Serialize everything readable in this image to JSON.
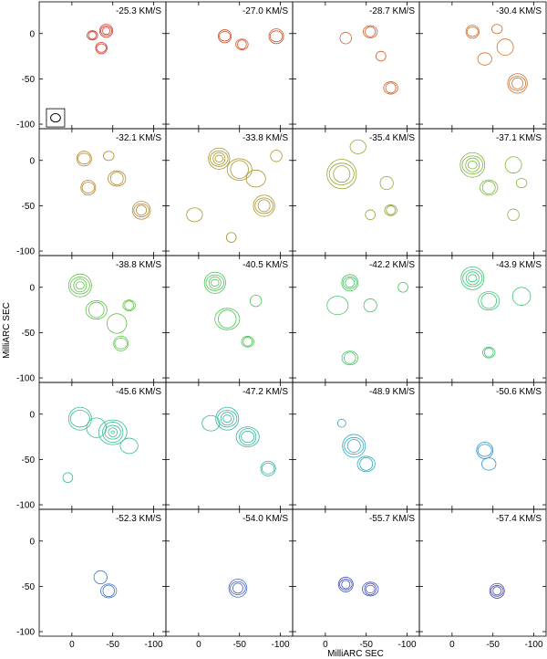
{
  "chart_data": {
    "type": "contour",
    "title": "",
    "xlabel": "MilliARC SEC",
    "ylabel": "MilliARC SEC",
    "xlim": [
      40,
      -115
    ],
    "ylim": [
      -105,
      35
    ],
    "xticks": [
      0,
      -50,
      -100
    ],
    "yticks": [
      0,
      -50,
      -100
    ],
    "velocity_unit": "KM/S",
    "beam": {
      "x": 20,
      "y": -93,
      "radius": 6
    },
    "panels": [
      {
        "velocity": "-25.3",
        "color": "#d23c2c",
        "components": [
          {
            "x": -42,
            "y": 3,
            "r": 8,
            "levels": 3
          },
          {
            "x": -25,
            "y": -2,
            "r": 6,
            "levels": 2
          },
          {
            "x": -36,
            "y": -16,
            "r": 7,
            "levels": 2
          }
        ]
      },
      {
        "velocity": "-27.0",
        "color": "#d4502c",
        "components": [
          {
            "x": -32,
            "y": -3,
            "r": 8,
            "levels": 2
          },
          {
            "x": -53,
            "y": -12,
            "r": 7,
            "levels": 2
          },
          {
            "x": -95,
            "y": -3,
            "r": 9,
            "levels": 2
          }
        ]
      },
      {
        "velocity": "-28.7",
        "color": "#d6602c",
        "components": [
          {
            "x": -25,
            "y": -5,
            "r": 7,
            "levels": 1
          },
          {
            "x": -55,
            "y": 2,
            "r": 8,
            "levels": 2
          },
          {
            "x": -68,
            "y": -25,
            "r": 6,
            "levels": 1
          },
          {
            "x": -80,
            "y": -60,
            "r": 8,
            "levels": 2
          }
        ]
      },
      {
        "velocity": "-30.4",
        "color": "#d27028",
        "components": [
          {
            "x": -25,
            "y": 2,
            "r": 8,
            "levels": 2
          },
          {
            "x": -55,
            "y": 5,
            "r": 6,
            "levels": 1
          },
          {
            "x": -65,
            "y": -15,
            "r": 10,
            "levels": 1
          },
          {
            "x": -40,
            "y": -28,
            "r": 8,
            "levels": 1
          },
          {
            "x": -80,
            "y": -55,
            "r": 12,
            "levels": 3
          }
        ]
      },
      {
        "velocity": "-32.1",
        "color": "#b8882c",
        "components": [
          {
            "x": -15,
            "y": 2,
            "r": 9,
            "levels": 2
          },
          {
            "x": -45,
            "y": 5,
            "r": 6,
            "levels": 1
          },
          {
            "x": -20,
            "y": -30,
            "r": 9,
            "levels": 2
          },
          {
            "x": -55,
            "y": -20,
            "r": 10,
            "levels": 2
          },
          {
            "x": -85,
            "y": -55,
            "r": 11,
            "levels": 3
          }
        ]
      },
      {
        "velocity": "-33.8",
        "color": "#a89428",
        "components": [
          {
            "x": -25,
            "y": 2,
            "r": 13,
            "levels": 4
          },
          {
            "x": -50,
            "y": -10,
            "r": 14,
            "levels": 2
          },
          {
            "x": -80,
            "y": -50,
            "r": 13,
            "levels": 3
          },
          {
            "x": -70,
            "y": -20,
            "r": 11,
            "levels": 1
          },
          {
            "x": -95,
            "y": 5,
            "r": 7,
            "levels": 1
          },
          {
            "x": 5,
            "y": -60,
            "r": 9,
            "levels": 1
          },
          {
            "x": -40,
            "y": -85,
            "r": 6,
            "levels": 1
          }
        ]
      },
      {
        "velocity": "-35.4",
        "color": "#8ea830",
        "components": [
          {
            "x": -20,
            "y": -15,
            "r": 18,
            "levels": 3
          },
          {
            "x": -40,
            "y": 15,
            "r": 9,
            "levels": 1
          },
          {
            "x": -75,
            "y": -25,
            "r": 8,
            "levels": 1
          },
          {
            "x": -80,
            "y": -55,
            "r": 7,
            "levels": 2
          },
          {
            "x": -55,
            "y": -60,
            "r": 6,
            "levels": 1
          }
        ]
      },
      {
        "velocity": "-37.1",
        "color": "#7ab838",
        "components": [
          {
            "x": -25,
            "y": -5,
            "r": 15,
            "levels": 4
          },
          {
            "x": -45,
            "y": -30,
            "r": 10,
            "levels": 2
          },
          {
            "x": -75,
            "y": -5,
            "r": 10,
            "levels": 1
          },
          {
            "x": -85,
            "y": -25,
            "r": 6,
            "levels": 1
          },
          {
            "x": -75,
            "y": -60,
            "r": 7,
            "levels": 1
          }
        ]
      },
      {
        "velocity": "-38.8",
        "color": "#5cc444",
        "components": [
          {
            "x": -10,
            "y": 2,
            "r": 14,
            "levels": 4
          },
          {
            "x": -30,
            "y": -25,
            "r": 12,
            "levels": 2
          },
          {
            "x": -55,
            "y": -40,
            "r": 12,
            "levels": 1
          },
          {
            "x": -70,
            "y": -20,
            "r": 7,
            "levels": 2
          },
          {
            "x": -60,
            "y": -62,
            "r": 9,
            "levels": 2
          }
        ]
      },
      {
        "velocity": "-40.5",
        "color": "#4ec454",
        "components": [
          {
            "x": -20,
            "y": 5,
            "r": 13,
            "levels": 4
          },
          {
            "x": -35,
            "y": -35,
            "r": 14,
            "levels": 2
          },
          {
            "x": -70,
            "y": -15,
            "r": 7,
            "levels": 1
          },
          {
            "x": -60,
            "y": -60,
            "r": 7,
            "levels": 2
          }
        ]
      },
      {
        "velocity": "-42.2",
        "color": "#48c464",
        "components": [
          {
            "x": -30,
            "y": 5,
            "r": 10,
            "levels": 3
          },
          {
            "x": -15,
            "y": -20,
            "r": 12,
            "levels": 1
          },
          {
            "x": -55,
            "y": -20,
            "r": 8,
            "levels": 1
          },
          {
            "x": -30,
            "y": -78,
            "r": 9,
            "levels": 2
          },
          {
            "x": -95,
            "y": 0,
            "r": 6,
            "levels": 1
          }
        ]
      },
      {
        "velocity": "-43.9",
        "color": "#3cc474",
        "components": [
          {
            "x": -25,
            "y": 10,
            "r": 14,
            "levels": 4
          },
          {
            "x": -45,
            "y": -15,
            "r": 12,
            "levels": 2
          },
          {
            "x": -85,
            "y": -10,
            "r": 11,
            "levels": 1
          },
          {
            "x": -45,
            "y": -72,
            "r": 7,
            "levels": 2
          }
        ]
      },
      {
        "velocity": "-45.6",
        "color": "#38bc8c",
        "components": [
          {
            "x": -10,
            "y": -5,
            "r": 14,
            "levels": 2
          },
          {
            "x": -50,
            "y": -20,
            "r": 16,
            "levels": 5
          },
          {
            "x": -30,
            "y": -15,
            "r": 12,
            "levels": 1
          },
          {
            "x": -70,
            "y": -35,
            "r": 10,
            "levels": 1
          },
          {
            "x": 5,
            "y": -70,
            "r": 6,
            "levels": 1
          }
        ]
      },
      {
        "velocity": "-47.2",
        "color": "#34b4a0",
        "components": [
          {
            "x": -35,
            "y": -5,
            "r": 14,
            "levels": 4
          },
          {
            "x": -60,
            "y": -25,
            "r": 13,
            "levels": 3
          },
          {
            "x": -85,
            "y": -60,
            "r": 9,
            "levels": 2
          },
          {
            "x": -15,
            "y": -10,
            "r": 10,
            "levels": 1
          }
        ]
      },
      {
        "velocity": "-48.9",
        "color": "#30a8bc",
        "components": [
          {
            "x": -35,
            "y": -35,
            "r": 14,
            "levels": 3
          },
          {
            "x": -50,
            "y": -55,
            "r": 10,
            "levels": 2
          },
          {
            "x": -20,
            "y": -10,
            "r": 5,
            "levels": 1
          }
        ]
      },
      {
        "velocity": "-50.6",
        "color": "#3090cc",
        "components": [
          {
            "x": -40,
            "y": -40,
            "r": 10,
            "levels": 2
          },
          {
            "x": -45,
            "y": -55,
            "r": 8,
            "levels": 1
          }
        ]
      },
      {
        "velocity": "-52.3",
        "color": "#3c78c8",
        "components": [
          {
            "x": -35,
            "y": -40,
            "r": 8,
            "levels": 1
          },
          {
            "x": -45,
            "y": -55,
            "r": 9,
            "levels": 2
          }
        ]
      },
      {
        "velocity": "-54.0",
        "color": "#4262c4",
        "components": [
          {
            "x": -48,
            "y": -52,
            "r": 11,
            "levels": 3
          }
        ]
      },
      {
        "velocity": "-55.7",
        "color": "#4450bc",
        "components": [
          {
            "x": -25,
            "y": -48,
            "r": 9,
            "levels": 3
          },
          {
            "x": -55,
            "y": -53,
            "r": 9,
            "levels": 3
          }
        ]
      },
      {
        "velocity": "-57.4",
        "color": "#4848b4",
        "components": [
          {
            "x": -55,
            "y": -55,
            "r": 9,
            "levels": 3
          }
        ]
      }
    ]
  }
}
